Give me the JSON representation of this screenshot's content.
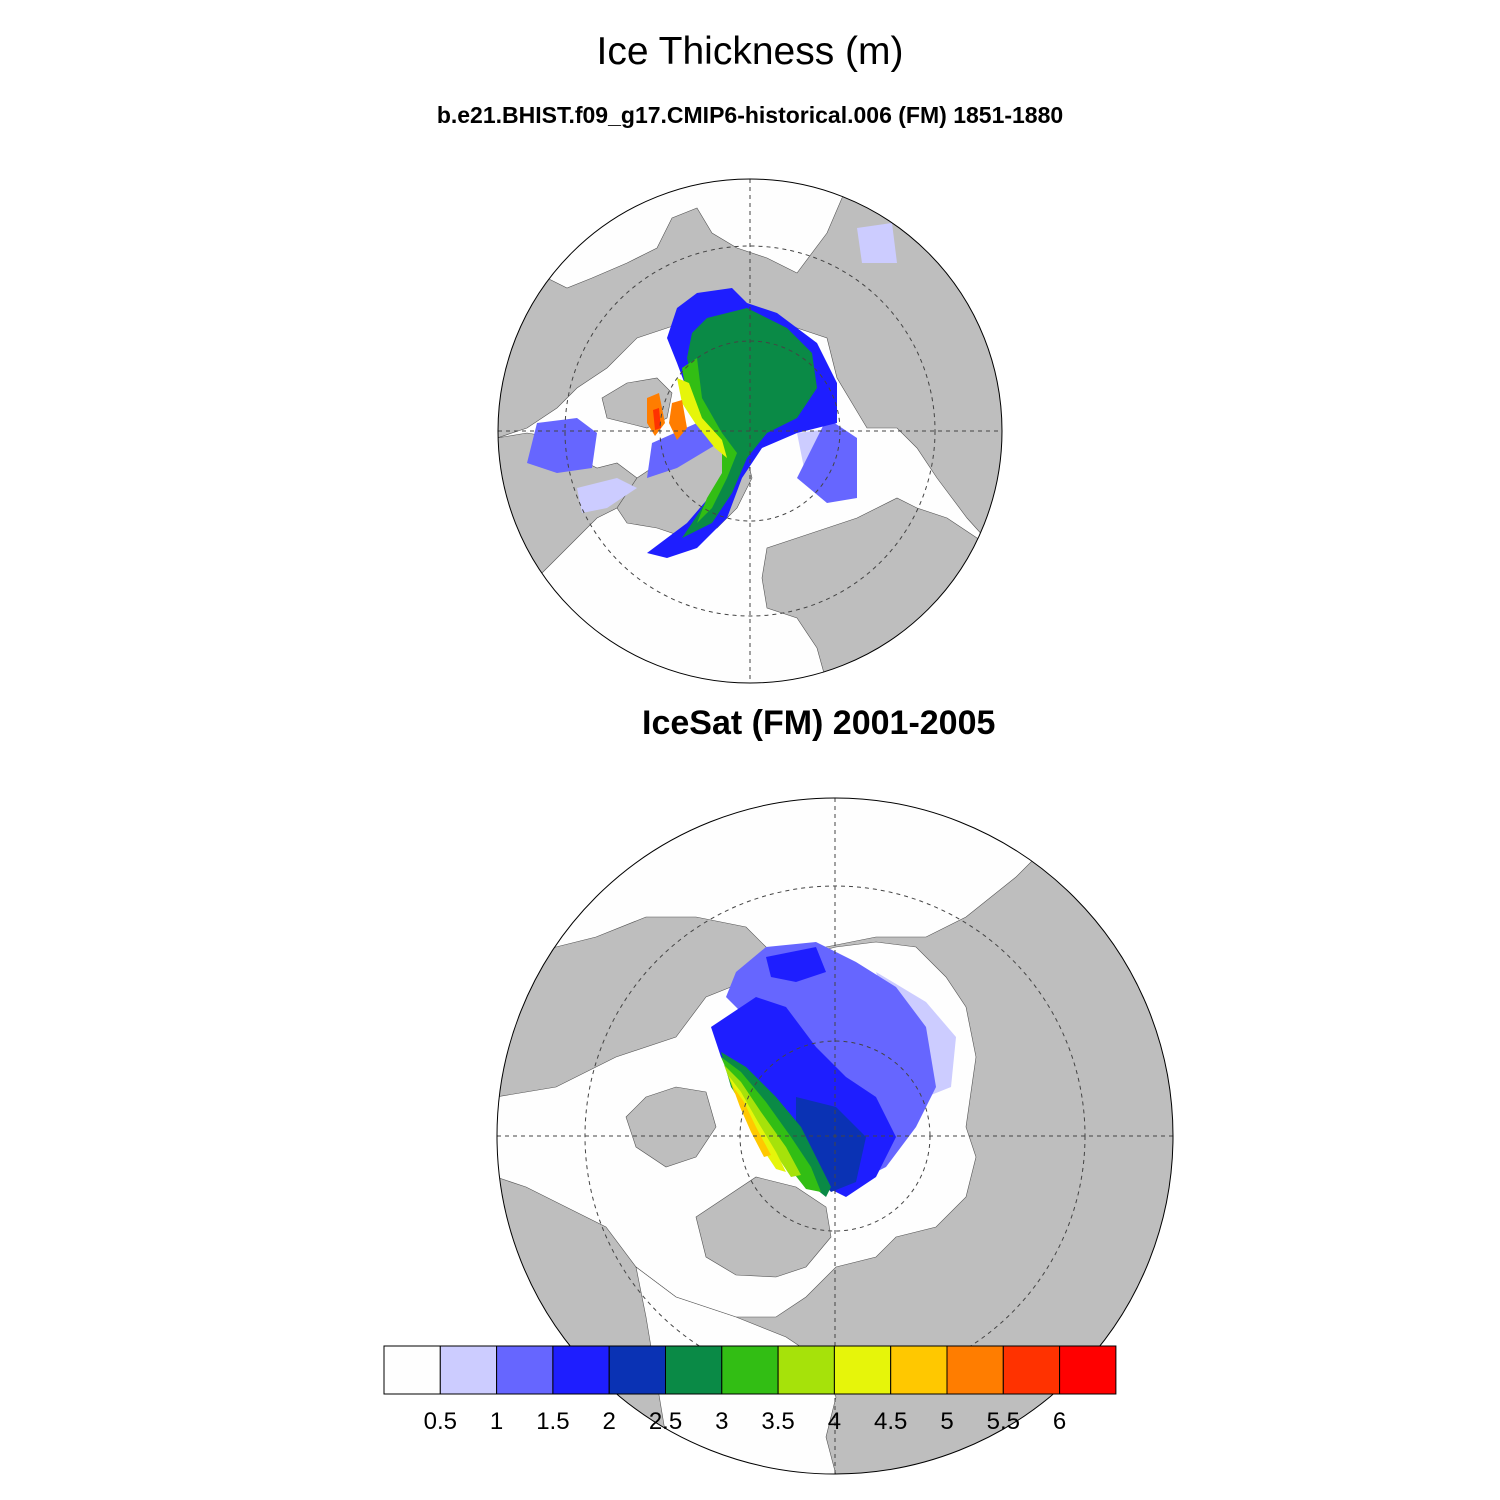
{
  "title": "Ice Thickness (m)",
  "panels": [
    {
      "subtitle": "b.e21.BHIST.f09_g17.CMIP6-historical.006 (FM) 1851-1880"
    },
    {
      "subtitle": "IceSat (FM) 2001-2005"
    }
  ],
  "colorbar": {
    "labels": [
      "0.5",
      "1",
      "1.5",
      "2",
      "2.5",
      "3",
      "3.5",
      "4",
      "4.5",
      "5",
      "5.5",
      "6"
    ],
    "colors": [
      "#fefefe",
      "#ccccff",
      "#6666ff",
      "#1e1eff",
      "#0a32b4",
      "#0a8a46",
      "#32be14",
      "#a6e20a",
      "#e6f50a",
      "#ffc800",
      "#ff7d00",
      "#ff3200",
      "#ff0000"
    ]
  },
  "map_colors": {
    "land": "#bebebe",
    "open_water": "#fefefe"
  }
}
